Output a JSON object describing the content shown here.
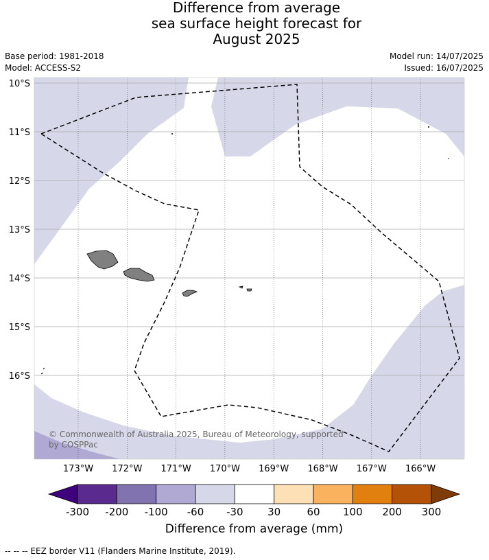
{
  "title_lines": [
    "Difference from average",
    "sea surface height forecast for",
    "August 2025"
  ],
  "meta": {
    "base_period": "Base period: 1981-2018",
    "model": "Model: ACCESS-S2",
    "model_run": "Model run: 14/07/2025",
    "issued": "Issued: 16/07/2025"
  },
  "map": {
    "lat_labels": [
      "10°S",
      "11°S",
      "12°S",
      "13°S",
      "14°S",
      "15°S",
      "16°S"
    ],
    "lon_labels": [
      "173°W",
      "172°W",
      "171°W",
      "170°W",
      "169°W",
      "168°W",
      "167°W",
      "166°W"
    ],
    "copyright": "© Commonwealth of Australia 2025, Bureau of Meteorology, supported by COSPPac",
    "colors": {
      "ocean_white": "#ffffff",
      "light_purple": "#d7d7ea",
      "mid_purple": "#b0a9d4",
      "land": "#808080"
    }
  },
  "colorbar": {
    "title": "Difference from average (mm)",
    "tick_labels": [
      "-300",
      "-200",
      "-100",
      "-60",
      "-30",
      "30",
      "60",
      "100",
      "200",
      "300"
    ],
    "colors": [
      "#3f007d",
      "#5b2a8f",
      "#8173b0",
      "#b0a9d4",
      "#d7d7ea",
      "#ffffff",
      "#fde0b5",
      "#fbb25f",
      "#e2800f",
      "#b45308",
      "#7f3b08"
    ]
  },
  "footnote": "--  --  -- EEZ border V11 (Flanders Marine Institute, 2019)."
}
